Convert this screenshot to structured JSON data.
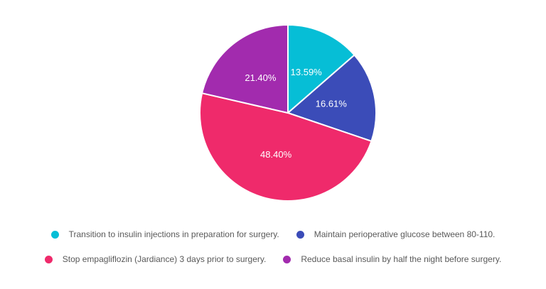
{
  "chart_data": {
    "type": "pie",
    "title": "",
    "start_angle_deg": 0,
    "direction": "clockwise",
    "legend_position": "bottom",
    "value_label_color": "#ffffff",
    "legend_text_color": "#595959",
    "background_color": "#ffffff",
    "slice_border_color": "#ffffff",
    "slices": [
      {
        "label": "Transition to insulin injections in preparation for surgery.",
        "value": 13.59,
        "display": "13.59%",
        "color": "#06bed6"
      },
      {
        "label": "Maintain perioperative glucose between 80-110.",
        "value": 16.61,
        "display": "16.61%",
        "color": "#3b4cb8"
      },
      {
        "label": "Stop empagliflozin (Jardiance) 3 days prior to surgery.",
        "value": 48.4,
        "display": "48.40%",
        "color": "#ef2a6b"
      },
      {
        "label": "Reduce basal insulin by half the night before surgery.",
        "value": 21.4,
        "display": "21.40%",
        "color": "#a22bae"
      }
    ]
  }
}
